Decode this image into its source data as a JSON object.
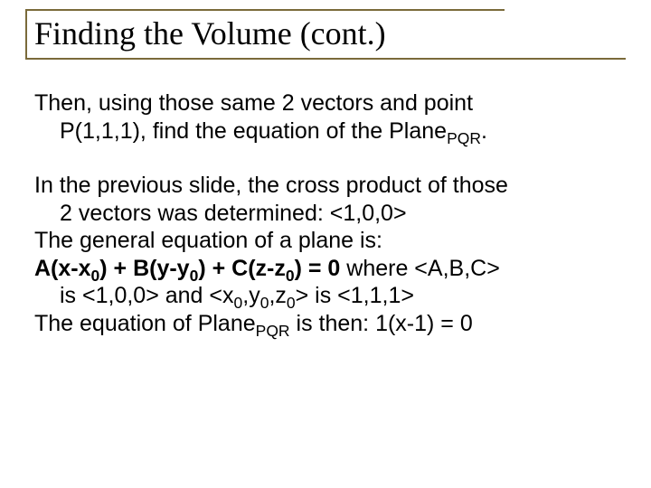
{
  "colors": {
    "rule": "#7a6a3a",
    "text": "#000000",
    "background": "#ffffff"
  },
  "typography": {
    "title_font": "Times New Roman",
    "title_fontsize_pt": 27,
    "body_font": "Arial",
    "body_fontsize_pt": 19
  },
  "title": "Finding the Volume (cont.)",
  "p1_a": "Then, using those same 2 vectors and point",
  "p1_b_pre": "P(1,1,1), find the equation of the Plane",
  "p1_b_sub": "PQR",
  "p1_b_post": ".",
  "p2_a": "In the previous slide, the cross product of those",
  "p2_b": "2 vectors was determined: <1,0,0>",
  "p3": "The general equation of a plane is:",
  "eq_a": "A(x-x",
  "eq_s0a": "0",
  "eq_b": ") + B(y-y",
  "eq_s0b": "0",
  "eq_c": ") + C(z-z",
  "eq_s0c": "0",
  "eq_d": ") = 0",
  "eq_tail": " where <A,B,C>",
  "p4_a_pre": "is <1,0,0> and <x",
  "p4_a_s1": "0",
  "p4_a_mid1": ",y",
  "p4_a_s2": "0",
  "p4_a_mid2": ",z",
  "p4_a_s3": "0",
  "p4_a_post": "> is <1,1,1>",
  "p5_pre": "The equation of Plane",
  "p5_sub": "PQR",
  "p5_post": " is then: 1(x-1) = 0"
}
